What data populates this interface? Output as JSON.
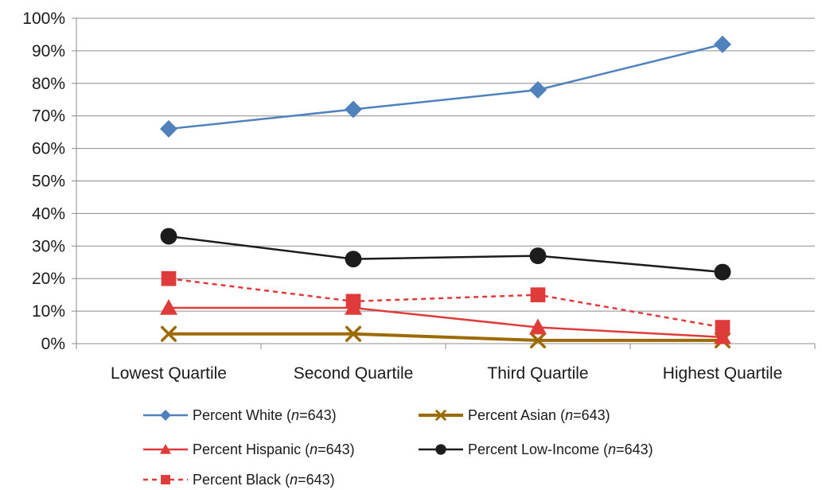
{
  "chart_data": {
    "type": "line",
    "categories": [
      "Lowest Quartile",
      "Second Quartile",
      "Third Quartile",
      "Highest Quartile"
    ],
    "y_ticks": [
      "0%",
      "10%",
      "20%",
      "30%",
      "40%",
      "50%",
      "60%",
      "70%",
      "80%",
      "90%",
      "100%"
    ],
    "ylim": [
      0,
      100
    ],
    "grid": true,
    "legend_position": "bottom",
    "series": [
      {
        "name": "Percent White",
        "n_label": "n",
        "n_value": "=643)",
        "values": [
          66,
          72,
          78,
          92
        ],
        "color": "#4f81bd",
        "marker": "diamond",
        "dash": "solid",
        "line_width": 2.5
      },
      {
        "name": "Percent Asian",
        "n_label": "n",
        "n_value": "=643)",
        "values": [
          3,
          3,
          1,
          1
        ],
        "color": "#9c6a00",
        "marker": "x",
        "dash": "solid",
        "line_width": 4
      },
      {
        "name": "Percent Hispanic",
        "n_label": "n",
        "n_value": "=643)",
        "values": [
          11,
          11,
          5,
          2
        ],
        "color": "#e03b3b",
        "marker": "triangle",
        "dash": "solid",
        "line_width": 2.5
      },
      {
        "name": "Percent Low-Income",
        "n_label": "n",
        "n_value": "=643)",
        "values": [
          33,
          26,
          27,
          22
        ],
        "color": "#1c1c1c",
        "marker": "circle",
        "dash": "solid",
        "line_width": 2.5
      },
      {
        "name": "Percent Black",
        "n_label": "n",
        "n_value": "=643)",
        "values": [
          20,
          13,
          15,
          5
        ],
        "color": "#e03b3b",
        "marker": "square",
        "dash": "dashed",
        "line_width": 2.5
      }
    ]
  }
}
